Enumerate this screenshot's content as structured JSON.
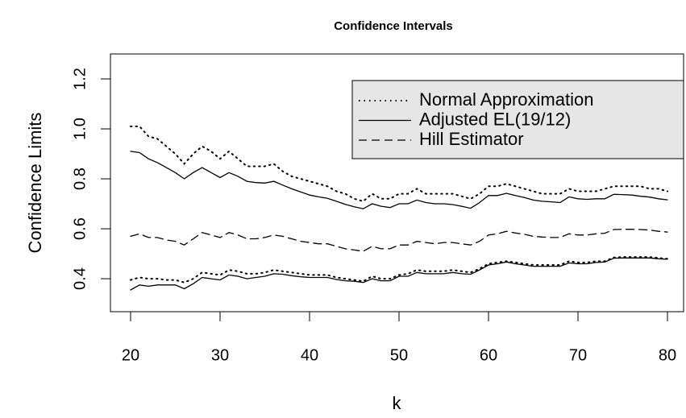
{
  "chart_data": {
    "type": "line",
    "title": "Confidence Intervals",
    "xlabel": "k",
    "ylabel": "Confidence Limits",
    "x": [
      20,
      21,
      22,
      23,
      24,
      25,
      26,
      27,
      28,
      29,
      30,
      31,
      32,
      33,
      34,
      35,
      36,
      37,
      38,
      39,
      40,
      41,
      42,
      43,
      44,
      45,
      46,
      47,
      48,
      49,
      50,
      51,
      52,
      53,
      54,
      55,
      56,
      57,
      58,
      59,
      60,
      61,
      62,
      63,
      64,
      65,
      66,
      67,
      68,
      69,
      70,
      71,
      72,
      73,
      74,
      75,
      76,
      77,
      78,
      79,
      80
    ],
    "xlim": [
      17.75,
      81.8
    ],
    "xticks": [
      20,
      30,
      40,
      50,
      60,
      70,
      80
    ],
    "ylim": [
      0.268,
      1.3
    ],
    "yticks": [
      0.4,
      0.6,
      0.8,
      1.0,
      1.2
    ],
    "ytick_labels": [
      "0.4",
      "0.6",
      "0.8",
      "1.0",
      "1.2"
    ],
    "legend": "topright",
    "series": [
      {
        "name": "Normal Approximation",
        "color": "#000000",
        "dash": "dotted",
        "lines": [
          [
            1.01,
            1.01,
            0.97,
            0.96,
            0.93,
            0.9,
            0.86,
            0.9,
            0.93,
            0.91,
            0.88,
            0.91,
            0.88,
            0.85,
            0.85,
            0.85,
            0.86,
            0.83,
            0.81,
            0.8,
            0.79,
            0.78,
            0.77,
            0.75,
            0.74,
            0.72,
            0.71,
            0.74,
            0.72,
            0.72,
            0.74,
            0.74,
            0.76,
            0.74,
            0.74,
            0.74,
            0.74,
            0.73,
            0.72,
            0.74,
            0.77,
            0.77,
            0.78,
            0.77,
            0.76,
            0.75,
            0.74,
            0.74,
            0.74,
            0.76,
            0.75,
            0.75,
            0.75,
            0.76,
            0.77,
            0.77,
            0.77,
            0.77,
            0.76,
            0.76,
            0.75
          ],
          [
            0.395,
            0.405,
            0.4,
            0.4,
            0.395,
            0.395,
            0.385,
            0.4,
            0.425,
            0.42,
            0.415,
            0.435,
            0.43,
            0.42,
            0.42,
            0.425,
            0.435,
            0.43,
            0.425,
            0.42,
            0.415,
            0.415,
            0.415,
            0.405,
            0.4,
            0.395,
            0.39,
            0.41,
            0.4,
            0.4,
            0.415,
            0.42,
            0.435,
            0.43,
            0.43,
            0.43,
            0.435,
            0.43,
            0.425,
            0.44,
            0.46,
            0.465,
            0.47,
            0.465,
            0.46,
            0.455,
            0.455,
            0.455,
            0.455,
            0.47,
            0.465,
            0.465,
            0.47,
            0.47,
            0.485,
            0.487,
            0.487,
            0.487,
            0.487,
            0.483,
            0.48
          ]
        ]
      },
      {
        "name": "Adjusted EL(19/12)",
        "color": "#000000",
        "dash": "solid",
        "lines": [
          [
            0.91,
            0.905,
            0.88,
            0.865,
            0.845,
            0.825,
            0.8,
            0.825,
            0.845,
            0.825,
            0.805,
            0.825,
            0.81,
            0.79,
            0.785,
            0.783,
            0.79,
            0.775,
            0.76,
            0.748,
            0.735,
            0.728,
            0.722,
            0.71,
            0.698,
            0.688,
            0.68,
            0.7,
            0.69,
            0.685,
            0.7,
            0.7,
            0.715,
            0.705,
            0.7,
            0.7,
            0.697,
            0.69,
            0.682,
            0.705,
            0.733,
            0.733,
            0.742,
            0.733,
            0.725,
            0.715,
            0.71,
            0.708,
            0.705,
            0.728,
            0.72,
            0.718,
            0.72,
            0.72,
            0.738,
            0.737,
            0.735,
            0.73,
            0.727,
            0.72,
            0.716
          ],
          [
            0.355,
            0.375,
            0.37,
            0.375,
            0.375,
            0.375,
            0.36,
            0.38,
            0.405,
            0.4,
            0.395,
            0.415,
            0.41,
            0.4,
            0.405,
            0.41,
            0.42,
            0.418,
            0.412,
            0.408,
            0.405,
            0.405,
            0.405,
            0.397,
            0.392,
            0.39,
            0.385,
            0.4,
            0.392,
            0.392,
            0.41,
            0.41,
            0.425,
            0.42,
            0.42,
            0.42,
            0.425,
            0.42,
            0.418,
            0.435,
            0.455,
            0.46,
            0.467,
            0.46,
            0.455,
            0.45,
            0.45,
            0.45,
            0.45,
            0.463,
            0.46,
            0.46,
            0.465,
            0.467,
            0.482,
            0.483,
            0.483,
            0.483,
            0.483,
            0.48,
            0.478
          ]
        ]
      },
      {
        "name": "Hill Estimator",
        "color": "#000000",
        "dash": "dashed",
        "lines": [
          [
            0.57,
            0.58,
            0.565,
            0.565,
            0.555,
            0.55,
            0.535,
            0.56,
            0.585,
            0.575,
            0.565,
            0.585,
            0.575,
            0.56,
            0.56,
            0.565,
            0.575,
            0.57,
            0.56,
            0.55,
            0.545,
            0.54,
            0.54,
            0.53,
            0.52,
            0.515,
            0.51,
            0.53,
            0.52,
            0.52,
            0.535,
            0.535,
            0.55,
            0.545,
            0.54,
            0.545,
            0.545,
            0.54,
            0.535,
            0.55,
            0.575,
            0.58,
            0.59,
            0.583,
            0.578,
            0.57,
            0.567,
            0.565,
            0.565,
            0.58,
            0.575,
            0.575,
            0.58,
            0.582,
            0.597,
            0.598,
            0.598,
            0.597,
            0.595,
            0.59,
            0.587
          ]
        ]
      }
    ]
  }
}
